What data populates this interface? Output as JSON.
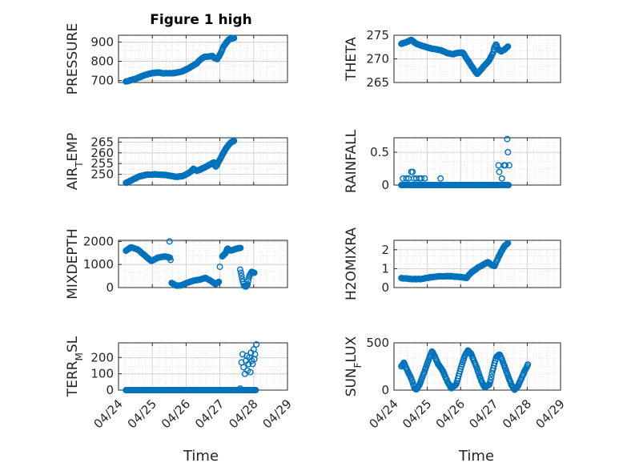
{
  "figure": {
    "title": "Figure 1 high",
    "xlabel": "Time",
    "date_ticks": [
      "04/24",
      "04/25",
      "04/26",
      "04/27",
      "04/28",
      "04/29"
    ],
    "marker_color": "#0072BD",
    "marker": "open-circle"
  },
  "chart_data": [
    {
      "type": "scatter",
      "ylabel": "PRESSURE",
      "title": "Figure 1 high",
      "xlim": [
        "04/24",
        "04/29"
      ],
      "ylim": [
        690,
        935
      ],
      "yticks": [
        700,
        800,
        900
      ],
      "grid": true,
      "keys": [
        [
          0.0,
          695
        ],
        [
          0.1,
          700
        ],
        [
          0.3,
          710
        ],
        [
          0.55,
          728
        ],
        [
          0.75,
          738
        ],
        [
          0.95,
          742
        ],
        [
          1.1,
          738
        ],
        [
          1.3,
          738
        ],
        [
          1.5,
          740
        ],
        [
          1.7,
          750
        ],
        [
          1.9,
          768
        ],
        [
          2.1,
          790
        ],
        [
          2.2,
          808
        ],
        [
          2.3,
          822
        ],
        [
          2.45,
          825
        ],
        [
          2.55,
          828
        ],
        [
          2.62,
          818
        ],
        [
          2.7,
          812
        ],
        [
          2.8,
          840
        ],
        [
          2.9,
          880
        ],
        [
          3.05,
          915
        ],
        [
          3.2,
          920
        ]
      ]
    },
    {
      "type": "scatter",
      "ylabel": "THETA",
      "xlim": [
        "04/24",
        "04/29"
      ],
      "ylim": [
        265,
        275
      ],
      "yticks": [
        265,
        270,
        275
      ],
      "grid": true,
      "keys": [
        [
          0.0,
          273.2
        ],
        [
          0.15,
          273.5
        ],
        [
          0.3,
          274.0
        ],
        [
          0.45,
          273.2
        ],
        [
          0.6,
          272.8
        ],
        [
          0.9,
          272.2
        ],
        [
          1.2,
          271.8
        ],
        [
          1.4,
          271.2
        ],
        [
          1.55,
          271.0
        ],
        [
          1.7,
          271.3
        ],
        [
          1.85,
          271.3
        ],
        [
          1.95,
          270.2
        ],
        [
          2.1,
          268.6
        ],
        [
          2.2,
          267.5
        ],
        [
          2.28,
          266.8
        ],
        [
          2.4,
          267.8
        ],
        [
          2.55,
          269.0
        ],
        [
          2.65,
          269.8
        ],
        [
          2.7,
          270.5
        ],
        [
          2.75,
          271.2
        ],
        [
          2.8,
          272.5
        ],
        [
          2.85,
          273.2
        ],
        [
          2.9,
          272.0
        ],
        [
          3.0,
          271.6
        ],
        [
          3.1,
          272.0
        ],
        [
          3.2,
          272.6
        ]
      ]
    },
    {
      "type": "scatter",
      "ylabel": "AIR_TEMP",
      "xlim": [
        "04/24",
        "04/29"
      ],
      "ylim": [
        245,
        267
      ],
      "yticks": [
        250,
        255,
        260,
        265
      ],
      "grid": true,
      "keys": [
        [
          0.0,
          246
        ],
        [
          0.2,
          247.5
        ],
        [
          0.4,
          249
        ],
        [
          0.6,
          249.8
        ],
        [
          0.9,
          250
        ],
        [
          1.2,
          249.6
        ],
        [
          1.5,
          248.8
        ],
        [
          1.7,
          249.3
        ],
        [
          1.9,
          251
        ],
        [
          2.0,
          252.5
        ],
        [
          2.1,
          251.6
        ],
        [
          2.2,
          252.2
        ],
        [
          2.4,
          253.8
        ],
        [
          2.6,
          255.5
        ],
        [
          2.65,
          253.5
        ],
        [
          2.7,
          254.5
        ],
        [
          2.8,
          257.5
        ],
        [
          2.9,
          260.5
        ],
        [
          3.0,
          263
        ],
        [
          3.1,
          264.8
        ],
        [
          3.2,
          265.5
        ]
      ]
    },
    {
      "type": "scatter",
      "ylabel": "RAINFALL",
      "xlim": [
        "04/24",
        "04/29"
      ],
      "ylim": [
        0,
        0.72
      ],
      "yticks": [
        0,
        0.5
      ],
      "grid": true,
      "series_base": 0,
      "points": [
        [
          0.05,
          0.1
        ],
        [
          0.15,
          0.1
        ],
        [
          0.22,
          0.1
        ],
        [
          0.3,
          0.2
        ],
        [
          0.34,
          0.2
        ],
        [
          0.38,
          0.1
        ],
        [
          0.45,
          0.1
        ],
        [
          0.55,
          0.1
        ],
        [
          0.6,
          0.1
        ],
        [
          0.7,
          0.1
        ],
        [
          1.18,
          0.1
        ],
        [
          2.92,
          0.3
        ],
        [
          2.94,
          0.2
        ],
        [
          3.02,
          0.1
        ],
        [
          3.08,
          0.3
        ],
        [
          3.12,
          0.3
        ],
        [
          3.18,
          0.7
        ],
        [
          3.2,
          0.5
        ],
        [
          3.24,
          0.3
        ]
      ]
    },
    {
      "type": "scatter",
      "ylabel": "MIXDEPTH",
      "xlim": [
        "04/24",
        "04/29"
      ],
      "ylim": [
        0,
        2050
      ],
      "yticks": [
        0,
        1000,
        2000
      ],
      "grid": true,
      "segments": [
        [
          [
            0.0,
            1600
          ],
          [
            0.15,
            1750
          ],
          [
            0.35,
            1650
          ],
          [
            0.55,
            1400
          ],
          [
            0.75,
            1150
          ],
          [
            0.95,
            1300
          ],
          [
            1.15,
            1350
          ],
          [
            1.3,
            1300
          ]
        ],
        [
          [
            1.35,
            200
          ],
          [
            1.5,
            80
          ],
          [
            1.65,
            100
          ],
          [
            1.8,
            200
          ],
          [
            2.0,
            300
          ],
          [
            2.2,
            350
          ],
          [
            2.35,
            420
          ],
          [
            2.5,
            300
          ],
          [
            2.65,
            150
          ],
          [
            2.75,
            250
          ]
        ],
        [
          [
            2.85,
            1350
          ],
          [
            2.95,
            1500
          ],
          [
            3.0,
            1700
          ],
          [
            3.1,
            1600
          ],
          [
            3.2,
            1650
          ],
          [
            3.3,
            1700
          ],
          [
            3.4,
            1720
          ]
        ],
        [
          [
            3.38,
            780
          ],
          [
            3.45,
            300
          ],
          [
            3.5,
            80
          ],
          [
            3.55,
            30
          ],
          [
            3.6,
            150
          ],
          [
            3.65,
            500
          ],
          [
            3.72,
            680
          ],
          [
            3.8,
            640
          ]
        ]
      ],
      "extras": [
        [
          1.29,
          2000
        ],
        [
          1.32,
          1200
        ],
        [
          2.78,
          900
        ]
      ]
    },
    {
      "type": "scatter",
      "ylabel": "H2OMIXRA",
      "xlim": [
        "04/24",
        "04/29"
      ],
      "ylim": [
        0,
        2.5
      ],
      "yticks": [
        0,
        1,
        2
      ],
      "grid": true,
      "keys": [
        [
          0.0,
          0.5
        ],
        [
          0.3,
          0.45
        ],
        [
          0.6,
          0.45
        ],
        [
          0.9,
          0.55
        ],
        [
          1.1,
          0.6
        ],
        [
          1.5,
          0.6
        ],
        [
          1.8,
          0.55
        ],
        [
          1.95,
          0.5
        ],
        [
          2.1,
          0.8
        ],
        [
          2.3,
          1.05
        ],
        [
          2.5,
          1.25
        ],
        [
          2.6,
          1.35
        ],
        [
          2.7,
          1.2
        ],
        [
          2.8,
          1.15
        ],
        [
          2.9,
          1.55
        ],
        [
          3.0,
          1.9
        ],
        [
          3.1,
          2.2
        ],
        [
          3.2,
          2.35
        ]
      ]
    },
    {
      "type": "scatter",
      "ylabel": "TERR_MSL",
      "xlim": [
        "04/24",
        "04/29"
      ],
      "ylim": [
        0,
        290
      ],
      "yticks": [
        0,
        100,
        200
      ],
      "grid": true,
      "series_base": 0,
      "points": [
        [
          3.38,
          10
        ],
        [
          3.42,
          170
        ],
        [
          3.45,
          220
        ],
        [
          3.48,
          140
        ],
        [
          3.52,
          100
        ],
        [
          3.55,
          180
        ],
        [
          3.58,
          210
        ],
        [
          3.6,
          120
        ],
        [
          3.63,
          160
        ],
        [
          3.65,
          200
        ],
        [
          3.68,
          110
        ],
        [
          3.7,
          230
        ],
        [
          3.72,
          180
        ],
        [
          3.75,
          160
        ],
        [
          3.78,
          250
        ],
        [
          3.8,
          190
        ],
        [
          3.82,
          220
        ],
        [
          3.86,
          280
        ]
      ]
    },
    {
      "type": "scatter",
      "ylabel": "SUN_FLUX",
      "xlim": [
        "04/24",
        "04/29"
      ],
      "ylim": [
        0,
        500
      ],
      "yticks": [
        0,
        500
      ],
      "grid": true,
      "keys": [
        [
          0.0,
          250
        ],
        [
          0.08,
          290
        ],
        [
          0.15,
          230
        ],
        [
          0.3,
          120
        ],
        [
          0.4,
          20
        ],
        [
          0.45,
          5
        ],
        [
          0.55,
          60
        ],
        [
          0.7,
          200
        ],
        [
          0.85,
          350
        ],
        [
          0.92,
          410
        ],
        [
          1.0,
          360
        ],
        [
          1.1,
          280
        ],
        [
          1.25,
          200
        ],
        [
          1.4,
          80
        ],
        [
          1.5,
          20
        ],
        [
          1.65,
          60
        ],
        [
          1.8,
          250
        ],
        [
          1.9,
          360
        ],
        [
          2.0,
          420
        ],
        [
          2.1,
          380
        ],
        [
          2.25,
          250
        ],
        [
          2.4,
          100
        ],
        [
          2.5,
          30
        ],
        [
          2.65,
          60
        ],
        [
          2.75,
          220
        ],
        [
          2.85,
          350
        ],
        [
          2.95,
          380
        ],
        [
          3.05,
          300
        ],
        [
          3.15,
          200
        ],
        [
          3.3,
          60
        ],
        [
          3.4,
          5
        ],
        [
          3.5,
          40
        ],
        [
          3.6,
          120
        ],
        [
          3.7,
          200
        ],
        [
          3.8,
          270
        ]
      ]
    }
  ]
}
